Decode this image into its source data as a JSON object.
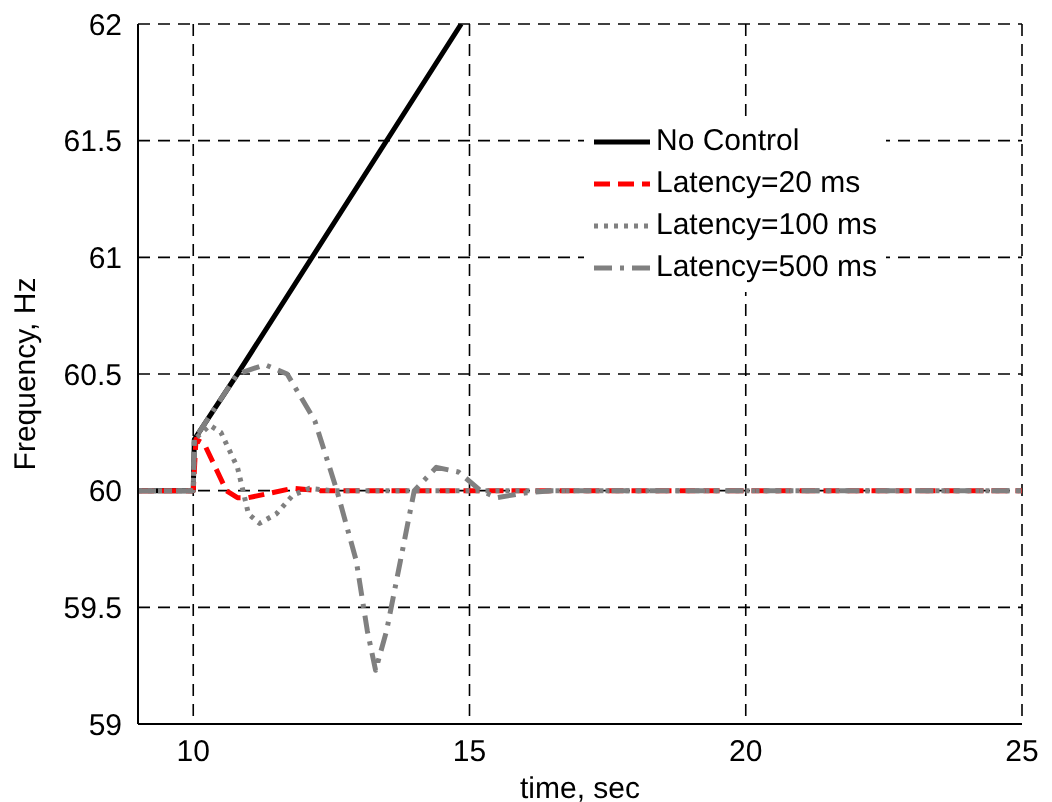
{
  "chart_data": {
    "type": "line",
    "xlabel": "time, sec",
    "ylabel": "Frequency, Hz",
    "xlim": [
      9,
      25
    ],
    "xticks": [
      10,
      15,
      20,
      25
    ],
    "ylim": [
      59,
      62
    ],
    "yticks": [
      59,
      59.5,
      60,
      60.5,
      61,
      61.5,
      62
    ],
    "grid": true,
    "legend": "top right",
    "series": [
      {
        "name": "No Control",
        "color": "#000000",
        "line_style": "solid",
        "x": [
          9,
          10,
          10.02,
          10.8,
          14.85
        ],
        "values": [
          60,
          60,
          60.22,
          60.5,
          62
        ]
      },
      {
        "name": "Latency=20 ms",
        "color": "#ff0000",
        "line_style": "dashed",
        "x": [
          9,
          10,
          10.05,
          10.2,
          10.4,
          10.6,
          10.8,
          11,
          11.4,
          11.8,
          12.3,
          25
        ],
        "values": [
          60,
          60,
          60.22,
          60.2,
          60.1,
          60,
          59.97,
          59.97,
          59.99,
          60.01,
          60,
          60
        ]
      },
      {
        "name": "Latency=100 ms",
        "color": "#808080",
        "line_style": "dotted",
        "x": [
          9,
          10,
          10.02,
          10.3,
          10.5,
          10.8,
          11,
          11.2,
          11.5,
          11.8,
          12.1,
          12.5,
          25
        ],
        "values": [
          60,
          60,
          60.22,
          60.28,
          60.25,
          60.1,
          59.9,
          59.86,
          59.9,
          59.98,
          60.01,
          60,
          60
        ]
      },
      {
        "name": "Latency=500 ms",
        "color": "#808080",
        "line_style": "dashdot",
        "x": [
          9,
          10,
          10.02,
          10.8,
          11.3,
          11.7,
          12.2,
          12.6,
          12.95,
          13.15,
          13.3,
          13.5,
          13.75,
          14,
          14.4,
          14.8,
          15.2,
          15.5,
          16,
          16.5,
          25
        ],
        "values": [
          60,
          60,
          60.22,
          60.5,
          60.54,
          60.5,
          60.3,
          60,
          59.7,
          59.4,
          59.23,
          59.4,
          59.7,
          60,
          60.1,
          60.08,
          60,
          59.97,
          59.99,
          60,
          60
        ]
      }
    ]
  }
}
